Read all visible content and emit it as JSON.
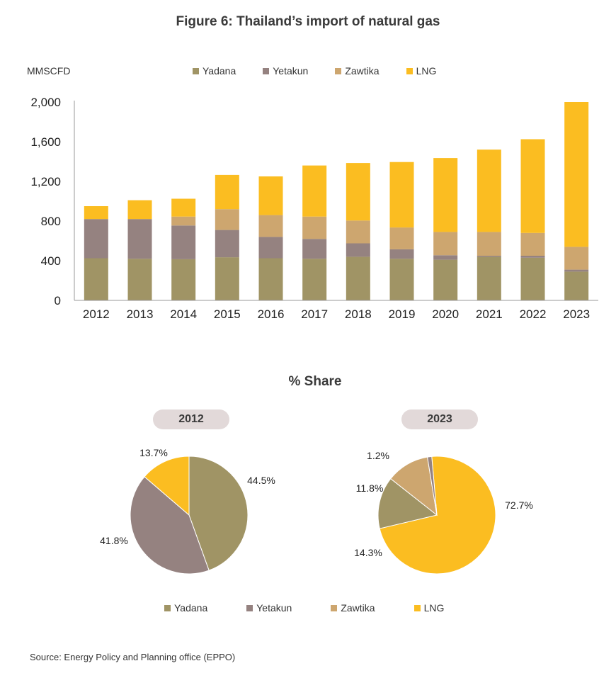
{
  "figure": {
    "title": "Figure 6:  Thailand’s import of natural gas",
    "unit_label": "MMSCFD",
    "share_title": "% Share",
    "source": "Source: Energy Policy and Planning office (EPPO)"
  },
  "legend": [
    {
      "label": "Yadana",
      "color": "#a09465"
    },
    {
      "label": "Yetakun",
      "color": "#958280"
    },
    {
      "label": "Zawtika",
      "color": "#cda66f"
    },
    {
      "label": "LNG",
      "color": "#fbbd21"
    }
  ],
  "chart_data": [
    {
      "type": "bar",
      "stacked": true,
      "title": "Figure 6:  Thailand’s import of natural gas",
      "ylabel": "MMSCFD",
      "ylim": [
        0,
        2000
      ],
      "yticks": [
        "0",
        "400",
        "800",
        "1,200",
        "1,600",
        "2,000"
      ],
      "ytick_values": [
        0,
        400,
        800,
        1200,
        1600,
        2000
      ],
      "grid": false,
      "legend_position": "top",
      "categories": [
        "2012",
        "2013",
        "2014",
        "2015",
        "2016",
        "2017",
        "2018",
        "2019",
        "2020",
        "2021",
        "2022",
        "2023"
      ],
      "series": [
        {
          "name": "Yadana",
          "color": "#a09465",
          "values": [
            425,
            420,
            415,
            435,
            425,
            420,
            440,
            420,
            410,
            440,
            430,
            290
          ]
        },
        {
          "name": "Yetakun",
          "color": "#958280",
          "values": [
            395,
            400,
            340,
            275,
            215,
            200,
            135,
            95,
            45,
            10,
            20,
            20
          ]
        },
        {
          "name": "Zawtika",
          "color": "#cda66f",
          "values": [
            0,
            0,
            90,
            210,
            220,
            225,
            230,
            220,
            235,
            240,
            230,
            230
          ]
        },
        {
          "name": "LNG",
          "color": "#fbbd21",
          "values": [
            130,
            190,
            180,
            345,
            390,
            515,
            580,
            660,
            745,
            830,
            945,
            1460
          ]
        }
      ]
    },
    {
      "type": "pie",
      "title": "2012",
      "slices": [
        {
          "name": "Yadana",
          "value": 44.5,
          "label": "44.5%",
          "color": "#a09465"
        },
        {
          "name": "Yetakun",
          "value": 41.8,
          "label": "41.8%",
          "color": "#958280"
        },
        {
          "name": "LNG",
          "value": 13.7,
          "label": "13.7%",
          "color": "#fbbd21"
        }
      ]
    },
    {
      "type": "pie",
      "title": "2023",
      "slices": [
        {
          "name": "LNG",
          "value": 72.7,
          "label": "72.7%",
          "color": "#fbbd21"
        },
        {
          "name": "Yadana",
          "value": 14.3,
          "label": "14.3%",
          "color": "#a09465"
        },
        {
          "name": "Zawtika",
          "value": 11.8,
          "label": "11.8%",
          "color": "#cda66f"
        },
        {
          "name": "Yetakun",
          "value": 1.2,
          "label": "1.2%",
          "color": "#958280"
        }
      ]
    }
  ]
}
